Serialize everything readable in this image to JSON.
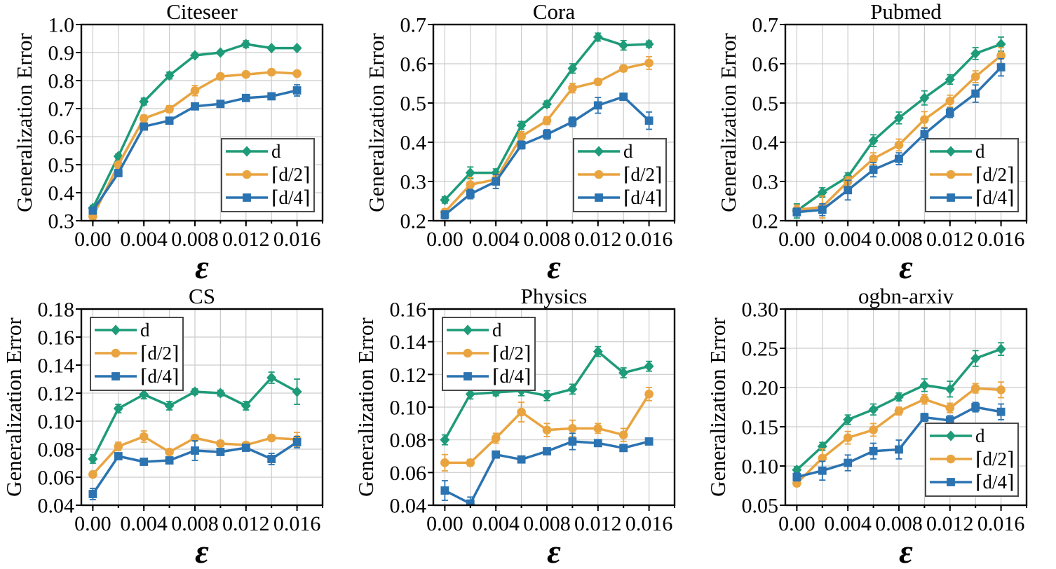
{
  "figure": {
    "background": "#ffffff",
    "grid_color": "#cccccc",
    "axis_color": "#000000",
    "legend_border_color": "#4a4a4a",
    "series_colors": {
      "d": "#1E9B78",
      "d_half": "#E9A440",
      "d_quarter": "#2B73B1"
    }
  },
  "chart_data": [
    {
      "type": "line",
      "title": "Citeseer",
      "xlabel": "ε",
      "ylabel": "Generalization Error",
      "x": [
        0,
        0.002,
        0.004,
        0.006,
        0.008,
        0.01,
        0.012,
        0.014,
        0.016
      ],
      "x_ticks": [
        0,
        0.004,
        0.008,
        0.012,
        0.016
      ],
      "x_tick_labels": [
        "0.00",
        "0.004",
        "0.008",
        "0.012",
        "0.016"
      ],
      "x_grid_ticks": [
        0,
        0.002,
        0.004,
        0.006,
        0.008,
        0.01,
        0.012,
        0.014,
        0.016,
        0.018
      ],
      "xlim": [
        -0.0009,
        0.018
      ],
      "ylim": [
        0.3,
        1.0
      ],
      "y_ticks": [
        0.3,
        0.4,
        0.5,
        0.6,
        0.7,
        0.8,
        0.9,
        1.0
      ],
      "y_tick_labels": [
        "0.3",
        "0.4",
        "0.5",
        "0.6",
        "0.7",
        "0.8",
        "0.9",
        "1.0"
      ],
      "grid": true,
      "legend_position": "lower-right",
      "series": [
        {
          "name": "d",
          "label": "d",
          "marker": "diamond",
          "color": "#1E9B78",
          "values": [
            0.345,
            0.53,
            0.725,
            0.818,
            0.89,
            0.9,
            0.93,
            0.916,
            0.916
          ],
          "errors": [
            0.01,
            0.008,
            0.012,
            0.012,
            0.008,
            0.006,
            0.012,
            0.006,
            0.006
          ]
        },
        {
          "name": "d_half",
          "label": "⌈d/2⌉",
          "marker": "circle",
          "color": "#E9A440",
          "values": [
            0.315,
            0.5,
            0.665,
            0.698,
            0.764,
            0.815,
            0.822,
            0.83,
            0.825
          ],
          "errors": [
            0.01,
            0.01,
            0.012,
            0.012,
            0.018,
            0.006,
            0.008,
            0.006,
            0.008
          ]
        },
        {
          "name": "d_quarter",
          "label": "⌈d/4⌉",
          "marker": "square",
          "color": "#2B73B1",
          "values": [
            0.336,
            0.47,
            0.636,
            0.657,
            0.708,
            0.717,
            0.738,
            0.744,
            0.765
          ],
          "errors": [
            0.012,
            0.01,
            0.01,
            0.012,
            0.01,
            0.006,
            0.006,
            0.006,
            0.02
          ]
        }
      ]
    },
    {
      "type": "line",
      "title": "Cora",
      "xlabel": "ε",
      "ylabel": "Generalization Error",
      "x": [
        0,
        0.002,
        0.004,
        0.006,
        0.008,
        0.01,
        0.012,
        0.014,
        0.016
      ],
      "x_ticks": [
        0,
        0.004,
        0.008,
        0.012,
        0.016
      ],
      "x_tick_labels": [
        "0.00",
        "0.004",
        "0.008",
        "0.012",
        "0.016"
      ],
      "x_grid_ticks": [
        0,
        0.002,
        0.004,
        0.006,
        0.008,
        0.01,
        0.012,
        0.014,
        0.016,
        0.018
      ],
      "xlim": [
        -0.0009,
        0.018
      ],
      "ylim": [
        0.2,
        0.7
      ],
      "y_ticks": [
        0.2,
        0.3,
        0.4,
        0.5,
        0.6,
        0.7
      ],
      "y_tick_labels": [
        "0.2",
        "0.3",
        "0.4",
        "0.5",
        "0.6",
        "0.7"
      ],
      "grid": true,
      "legend_position": "lower-right",
      "series": [
        {
          "name": "d",
          "label": "d",
          "marker": "diamond",
          "color": "#1E9B78",
          "values": [
            0.253,
            0.322,
            0.322,
            0.443,
            0.497,
            0.588,
            0.668,
            0.647,
            0.65
          ],
          "errors": [
            0.008,
            0.015,
            0.01,
            0.01,
            0.008,
            0.012,
            0.01,
            0.012,
            0.008
          ]
        },
        {
          "name": "d_half",
          "label": "⌈d/2⌉",
          "marker": "circle",
          "color": "#E9A440",
          "values": [
            0.222,
            0.292,
            0.305,
            0.415,
            0.455,
            0.538,
            0.554,
            0.588,
            0.602
          ],
          "errors": [
            0.008,
            0.018,
            0.01,
            0.012,
            0.01,
            0.012,
            0.008,
            0.008,
            0.016
          ]
        },
        {
          "name": "d_quarter",
          "label": "⌈d/4⌉",
          "marker": "square",
          "color": "#2B73B1",
          "values": [
            0.215,
            0.268,
            0.3,
            0.393,
            0.42,
            0.452,
            0.494,
            0.516,
            0.455
          ],
          "errors": [
            0.01,
            0.012,
            0.018,
            0.01,
            0.012,
            0.012,
            0.02,
            0.008,
            0.022
          ]
        }
      ]
    },
    {
      "type": "line",
      "title": "Pubmed",
      "xlabel": "ε",
      "ylabel": "Generalization Error",
      "x": [
        0,
        0.002,
        0.004,
        0.006,
        0.008,
        0.01,
        0.012,
        0.014,
        0.016
      ],
      "x_ticks": [
        0,
        0.004,
        0.008,
        0.012,
        0.016
      ],
      "x_tick_labels": [
        "0.00",
        "0.004",
        "0.008",
        "0.012",
        "0.016"
      ],
      "x_grid_ticks": [
        0,
        0.002,
        0.004,
        0.006,
        0.008,
        0.01,
        0.012,
        0.014,
        0.016,
        0.018
      ],
      "xlim": [
        -0.0009,
        0.018
      ],
      "ylim": [
        0.2,
        0.7
      ],
      "y_ticks": [
        0.2,
        0.3,
        0.4,
        0.5,
        0.6,
        0.7
      ],
      "y_tick_labels": [
        "0.2",
        "0.3",
        "0.4",
        "0.5",
        "0.6",
        "0.7"
      ],
      "grid": true,
      "legend_position": "lower-right",
      "series": [
        {
          "name": "d",
          "label": "d",
          "marker": "diamond",
          "color": "#1E9B78",
          "values": [
            0.225,
            0.272,
            0.312,
            0.404,
            0.462,
            0.513,
            0.56,
            0.626,
            0.65
          ],
          "errors": [
            0.018,
            0.012,
            0.01,
            0.015,
            0.015,
            0.018,
            0.012,
            0.015,
            0.018
          ]
        },
        {
          "name": "d_half",
          "label": "⌈d/2⌉",
          "marker": "circle",
          "color": "#E9A440",
          "values": [
            0.228,
            0.235,
            0.3,
            0.358,
            0.393,
            0.458,
            0.505,
            0.567,
            0.621
          ],
          "errors": [
            0.012,
            0.028,
            0.012,
            0.015,
            0.015,
            0.02,
            0.015,
            0.015,
            0.02
          ]
        },
        {
          "name": "d_quarter",
          "label": "⌈d/4⌉",
          "marker": "square",
          "color": "#2B73B1",
          "values": [
            0.222,
            0.228,
            0.278,
            0.33,
            0.358,
            0.421,
            0.475,
            0.524,
            0.591
          ],
          "errors": [
            0.01,
            0.015,
            0.025,
            0.018,
            0.015,
            0.015,
            0.012,
            0.022,
            0.022
          ]
        }
      ]
    },
    {
      "type": "line",
      "title": "CS",
      "xlabel": "ε",
      "ylabel": "Generalization Error",
      "x": [
        0,
        0.002,
        0.004,
        0.006,
        0.008,
        0.01,
        0.012,
        0.014,
        0.016
      ],
      "x_ticks": [
        0,
        0.004,
        0.008,
        0.012,
        0.016
      ],
      "x_tick_labels": [
        "0.00",
        "0.004",
        "0.008",
        "0.012",
        "0.016"
      ],
      "x_grid_ticks": [
        0,
        0.002,
        0.004,
        0.006,
        0.008,
        0.01,
        0.012,
        0.014,
        0.016,
        0.018
      ],
      "xlim": [
        -0.0009,
        0.018
      ],
      "ylim": [
        0.04,
        0.18
      ],
      "y_ticks": [
        0.04,
        0.06,
        0.08,
        0.1,
        0.12,
        0.14,
        0.16,
        0.18
      ],
      "y_tick_labels": [
        "0.04",
        "0.06",
        "0.08",
        "0.10",
        "0.12",
        "0.14",
        "0.16",
        "0.18"
      ],
      "grid": true,
      "legend_position": "upper-left",
      "series": [
        {
          "name": "d",
          "label": "d",
          "marker": "diamond",
          "color": "#1E9B78",
          "values": [
            0.073,
            0.109,
            0.119,
            0.111,
            0.121,
            0.12,
            0.111,
            0.131,
            0.121
          ],
          "errors": [
            0.003,
            0.003,
            0.003,
            0.003,
            0.002,
            0.002,
            0.003,
            0.004,
            0.009
          ]
        },
        {
          "name": "d_half",
          "label": "⌈d/2⌉",
          "marker": "circle",
          "color": "#E9A440",
          "values": [
            0.062,
            0.082,
            0.089,
            0.078,
            0.088,
            0.084,
            0.083,
            0.088,
            0.087
          ],
          "errors": [
            0.002,
            0.003,
            0.004,
            0.002,
            0.002,
            0.002,
            0.002,
            0.002,
            0.005
          ]
        },
        {
          "name": "d_quarter",
          "label": "⌈d/4⌉",
          "marker": "square",
          "color": "#2B73B1",
          "values": [
            0.048,
            0.075,
            0.071,
            0.072,
            0.079,
            0.078,
            0.081,
            0.073,
            0.085
          ],
          "errors": [
            0.004,
            0.002,
            0.002,
            0.002,
            0.007,
            0.002,
            0.002,
            0.004,
            0.004
          ]
        }
      ]
    },
    {
      "type": "line",
      "title": "Physics",
      "xlabel": "ε",
      "ylabel": "Generalization Error",
      "x": [
        0,
        0.002,
        0.004,
        0.006,
        0.008,
        0.01,
        0.012,
        0.014,
        0.016
      ],
      "x_ticks": [
        0,
        0.004,
        0.008,
        0.012,
        0.016
      ],
      "x_tick_labels": [
        "0.00",
        "0.004",
        "0.008",
        "0.012",
        "0.016"
      ],
      "x_grid_ticks": [
        0,
        0.002,
        0.004,
        0.006,
        0.008,
        0.01,
        0.012,
        0.014,
        0.016,
        0.018
      ],
      "xlim": [
        -0.0009,
        0.018
      ],
      "ylim": [
        0.04,
        0.16
      ],
      "y_ticks": [
        0.04,
        0.06,
        0.08,
        0.1,
        0.12,
        0.14,
        0.16
      ],
      "y_tick_labels": [
        "0.04",
        "0.06",
        "0.08",
        "0.10",
        "0.12",
        "0.14",
        "0.16"
      ],
      "grid": true,
      "legend_position": "upper-left",
      "series": [
        {
          "name": "d",
          "label": "d",
          "marker": "diamond",
          "color": "#1E9B78",
          "values": [
            0.08,
            0.108,
            0.109,
            0.11,
            0.107,
            0.111,
            0.134,
            0.121,
            0.125
          ],
          "errors": [
            0.003,
            0.003,
            0.002,
            0.003,
            0.003,
            0.003,
            0.003,
            0.003,
            0.003
          ]
        },
        {
          "name": "d_half",
          "label": "⌈d/2⌉",
          "marker": "circle",
          "color": "#E9A440",
          "values": [
            0.066,
            0.066,
            0.081,
            0.097,
            0.086,
            0.087,
            0.087,
            0.083,
            0.108
          ],
          "errors": [
            0.005,
            0.002,
            0.003,
            0.006,
            0.004,
            0.005,
            0.003,
            0.004,
            0.004
          ]
        },
        {
          "name": "d_quarter",
          "label": "⌈d/4⌉",
          "marker": "square",
          "color": "#2B73B1",
          "values": [
            0.049,
            0.041,
            0.071,
            0.068,
            0.073,
            0.079,
            0.078,
            0.075,
            0.079
          ],
          "errors": [
            0.006,
            0.004,
            0.002,
            0.002,
            0.002,
            0.005,
            0.002,
            0.002,
            0.002
          ]
        }
      ]
    },
    {
      "type": "line",
      "title": "ogbn-arxiv",
      "xlabel": "ε",
      "ylabel": "Generalization Error",
      "x": [
        0,
        0.002,
        0.004,
        0.006,
        0.008,
        0.01,
        0.012,
        0.014,
        0.016
      ],
      "x_ticks": [
        0,
        0.004,
        0.008,
        0.012,
        0.016
      ],
      "x_tick_labels": [
        "0.00",
        "0.004",
        "0.008",
        "0.012",
        "0.016"
      ],
      "x_grid_ticks": [
        0,
        0.002,
        0.004,
        0.006,
        0.008,
        0.01,
        0.012,
        0.014,
        0.016,
        0.018
      ],
      "xlim": [
        -0.0009,
        0.018
      ],
      "ylim": [
        0.05,
        0.3
      ],
      "y_ticks": [
        0.05,
        0.1,
        0.15,
        0.2,
        0.25,
        0.3
      ],
      "y_tick_labels": [
        "0.05",
        "0.10",
        "0.15",
        "0.20",
        "0.25",
        "0.30"
      ],
      "grid": true,
      "legend_position": "lower-right",
      "series": [
        {
          "name": "d",
          "label": "d",
          "marker": "diamond",
          "color": "#1E9B78",
          "values": [
            0.095,
            0.125,
            0.159,
            0.172,
            0.188,
            0.203,
            0.198,
            0.237,
            0.249
          ],
          "errors": [
            0.004,
            0.005,
            0.006,
            0.007,
            0.005,
            0.008,
            0.01,
            0.01,
            0.008
          ]
        },
        {
          "name": "d_half",
          "label": "⌈d/2⌉",
          "marker": "circle",
          "color": "#E9A440",
          "values": [
            0.078,
            0.11,
            0.136,
            0.146,
            0.17,
            0.185,
            0.174,
            0.199,
            0.197
          ],
          "errors": [
            0.004,
            0.012,
            0.008,
            0.008,
            0.005,
            0.006,
            0.006,
            0.006,
            0.01
          ]
        },
        {
          "name": "d_quarter",
          "label": "⌈d/4⌉",
          "marker": "square",
          "color": "#2B73B1",
          "values": [
            0.086,
            0.094,
            0.104,
            0.119,
            0.121,
            0.162,
            0.158,
            0.175,
            0.169
          ],
          "errors": [
            0.005,
            0.012,
            0.01,
            0.01,
            0.012,
            0.005,
            0.006,
            0.006,
            0.01
          ]
        }
      ]
    }
  ]
}
